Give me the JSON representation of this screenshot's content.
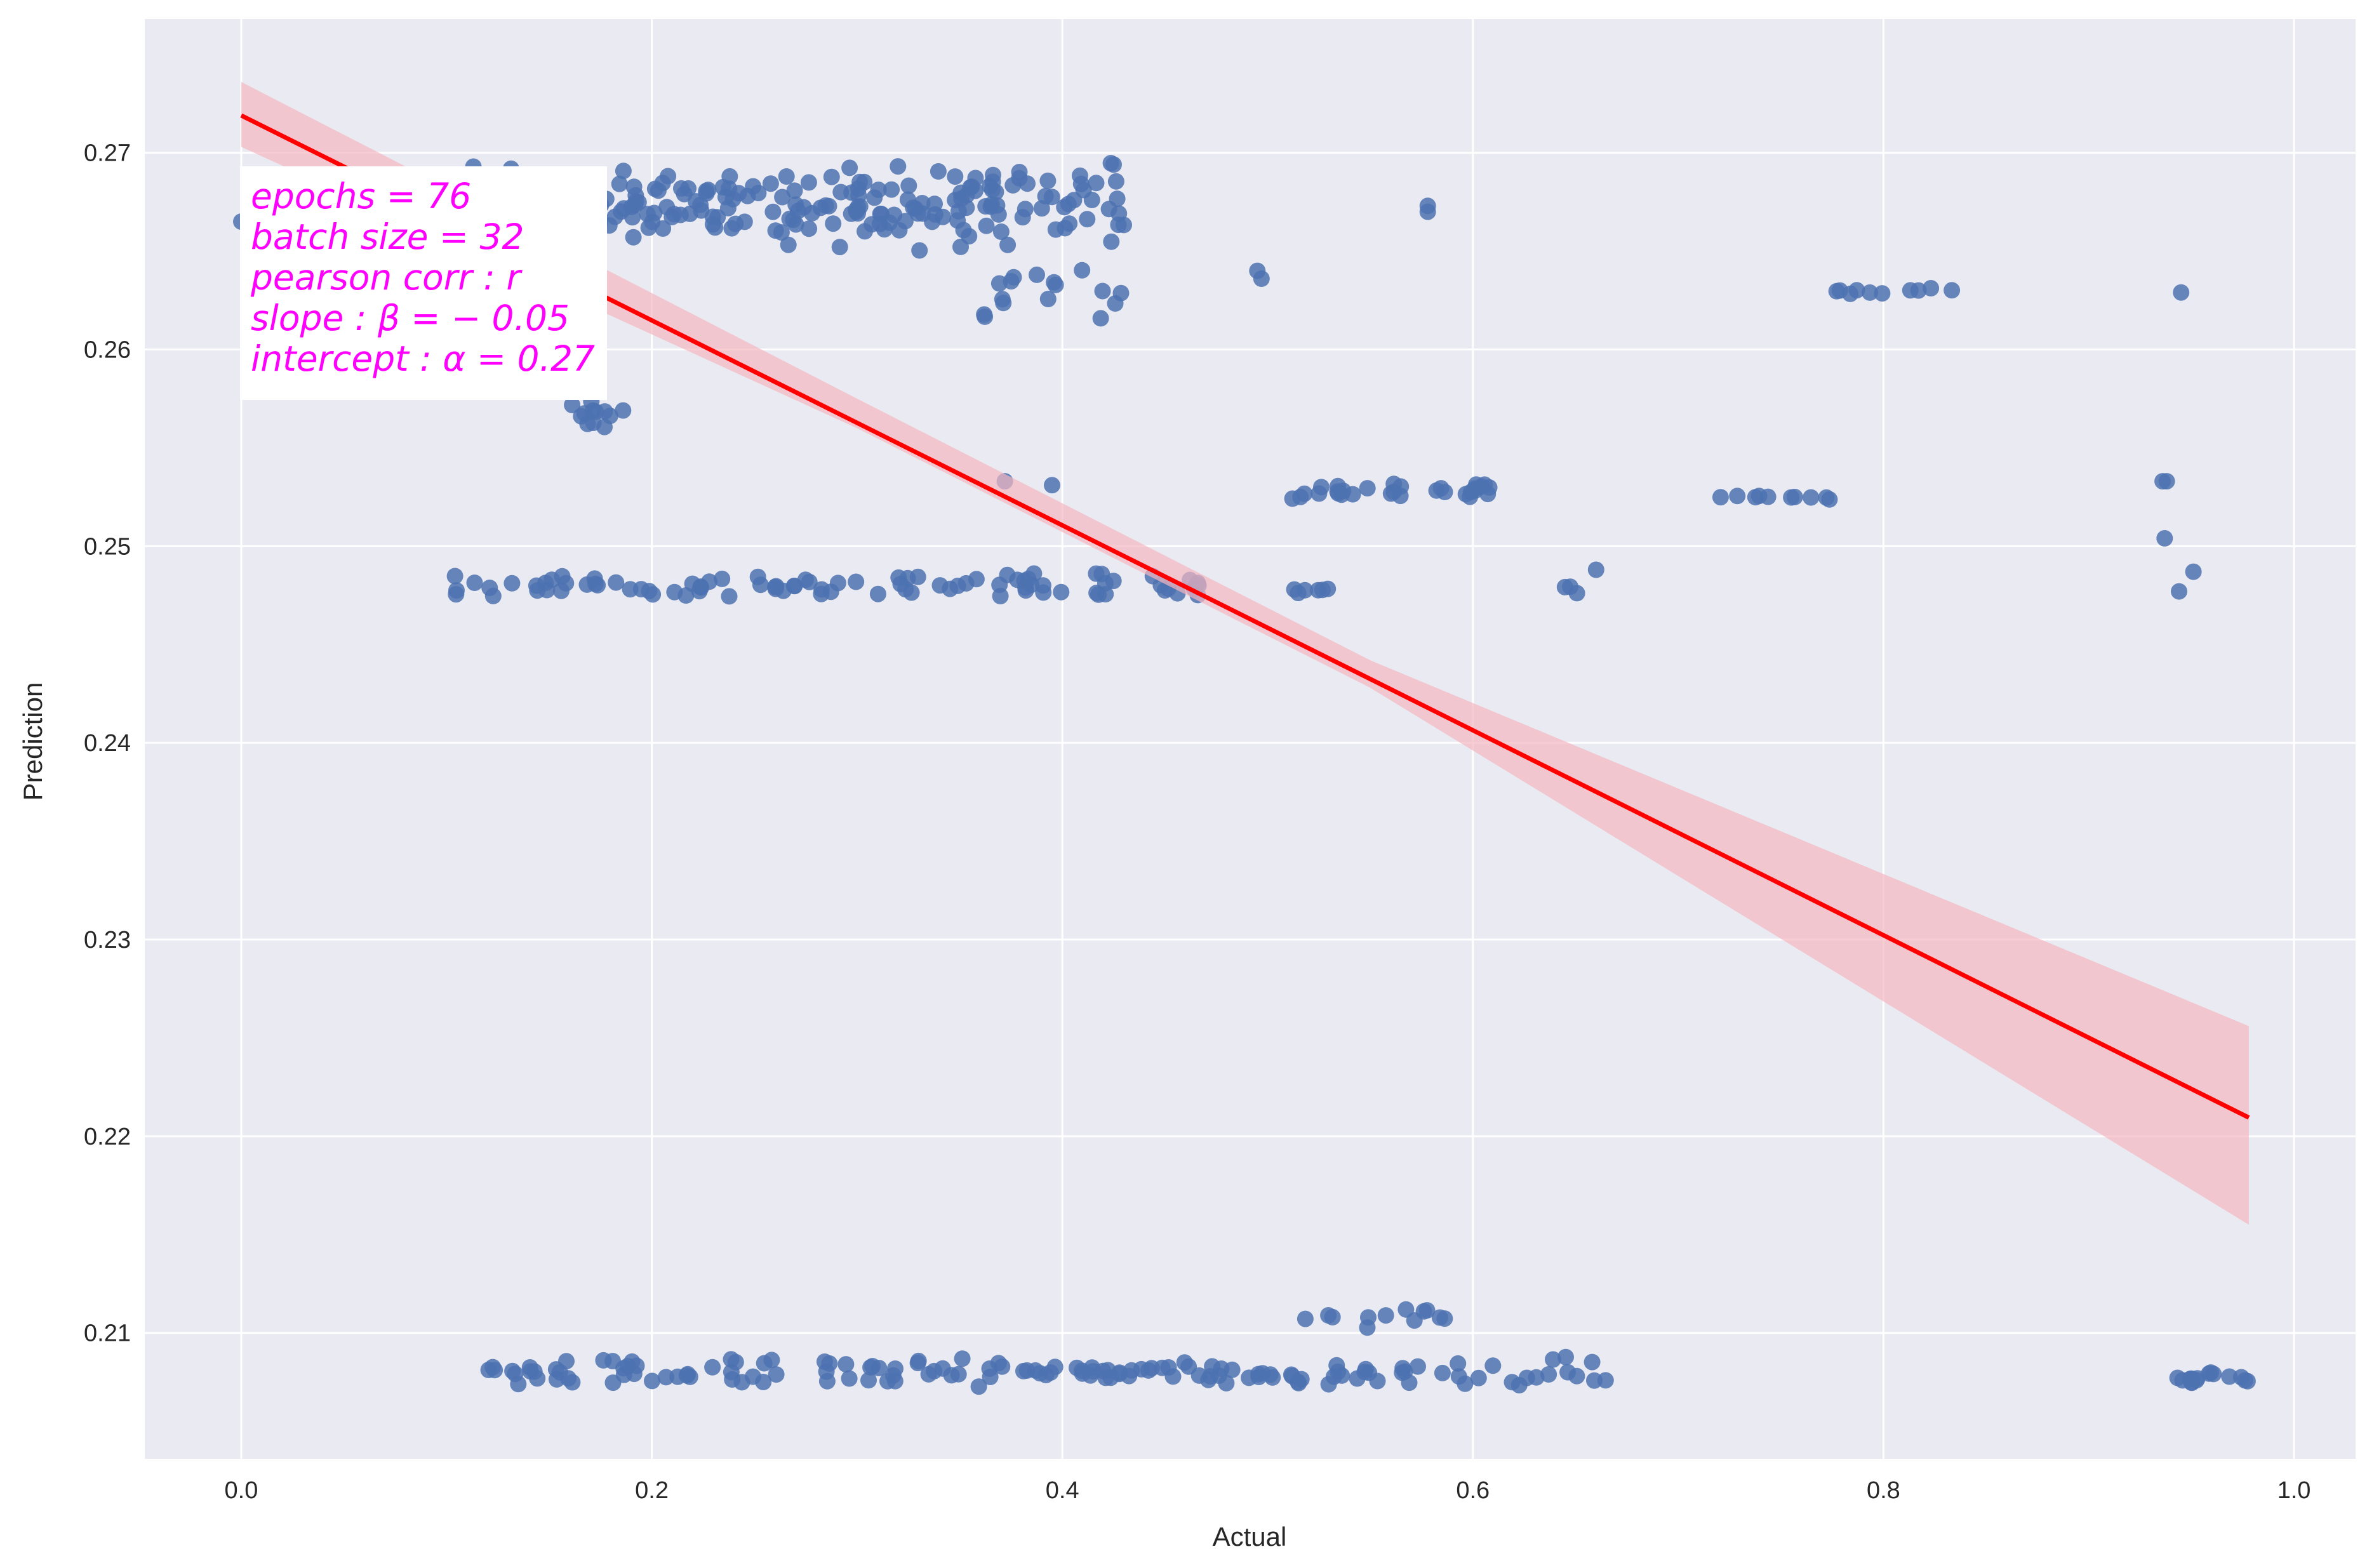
{
  "chart_data": {
    "type": "scatter",
    "title": "",
    "xlabel": "Actual",
    "ylabel": "Prediction",
    "xlim": [
      -0.047,
      1.03
    ],
    "ylim": [
      0.2036,
      0.2768
    ],
    "xticks": [
      0.0,
      0.2,
      0.4,
      0.6,
      0.8,
      1.0
    ],
    "xtick_labels": [
      "0.0",
      "0.2",
      "0.4",
      "0.6",
      "0.8",
      "1.0"
    ],
    "yticks": [
      0.21,
      0.22,
      0.23,
      0.24,
      0.25,
      0.26,
      0.27
    ],
    "ytick_labels": [
      "0.21",
      "0.22",
      "0.23",
      "0.24",
      "0.25",
      "0.26",
      "0.27"
    ],
    "grid": true,
    "background": "#eaeaf2",
    "point_color": "#4c72b0",
    "line_color": "#ff0000",
    "band_color": "#f4b6c0",
    "clusters": [
      {
        "x_from": 0.1,
        "x_to": 0.43,
        "y_center": 0.2672,
        "y_spread": 0.0024,
        "n": 240,
        "seed": 11
      },
      {
        "x_from": 0.04,
        "x_to": 0.09,
        "y_center": 0.2685,
        "y_spread": 0.0012,
        "n": 10,
        "seed": 12
      },
      {
        "x_from": 0.35,
        "x_to": 0.43,
        "y_center": 0.263,
        "y_spread": 0.002,
        "n": 16,
        "seed": 13
      },
      {
        "x_from": 0.16,
        "x_to": 0.19,
        "y_center": 0.2568,
        "y_spread": 0.001,
        "n": 12,
        "seed": 14
      },
      {
        "x_from": 0.1,
        "x_to": 0.47,
        "y_center": 0.248,
        "y_spread": 0.0007,
        "n": 90,
        "seed": 15
      },
      {
        "x_from": 0.51,
        "x_to": 0.61,
        "y_center": 0.2528,
        "y_spread": 0.0005,
        "n": 30,
        "seed": 16
      },
      {
        "x_from": 0.72,
        "x_to": 0.8,
        "y_center": 0.2525,
        "y_spread": 0.0002,
        "n": 10,
        "seed": 17
      },
      {
        "x_from": 0.77,
        "x_to": 0.84,
        "y_center": 0.263,
        "y_spread": 0.0002,
        "n": 10,
        "seed": 18
      },
      {
        "x_from": 0.64,
        "x_to": 0.66,
        "y_center": 0.248,
        "y_spread": 0.0005,
        "n": 3,
        "seed": 19
      },
      {
        "x_from": 0.51,
        "x_to": 0.53,
        "y_center": 0.2477,
        "y_spread": 0.0002,
        "n": 6,
        "seed": 20
      },
      {
        "x_from": 0.12,
        "x_to": 0.67,
        "y_center": 0.208,
        "y_spread": 0.0008,
        "n": 150,
        "seed": 21
      },
      {
        "x_from": 0.51,
        "x_to": 0.59,
        "y_center": 0.2108,
        "y_spread": 0.0006,
        "n": 12,
        "seed": 22
      },
      {
        "x_from": 0.94,
        "x_to": 0.98,
        "y_center": 0.2077,
        "y_spread": 0.0004,
        "n": 16,
        "seed": 23
      }
    ],
    "extra_points": [
      {
        "x": 0.0,
        "y": 0.2665
      },
      {
        "x": 0.578,
        "y": 0.2673
      },
      {
        "x": 0.578,
        "y": 0.267
      },
      {
        "x": 0.495,
        "y": 0.264
      },
      {
        "x": 0.497,
        "y": 0.2636
      },
      {
        "x": 0.945,
        "y": 0.2629
      },
      {
        "x": 0.938,
        "y": 0.2533
      },
      {
        "x": 0.936,
        "y": 0.2533
      },
      {
        "x": 0.937,
        "y": 0.2504
      },
      {
        "x": 0.951,
        "y": 0.2487
      },
      {
        "x": 0.944,
        "y": 0.2477
      },
      {
        "x": 0.66,
        "y": 0.2488
      },
      {
        "x": 0.372,
        "y": 0.2533
      },
      {
        "x": 0.395,
        "y": 0.2531
      },
      {
        "x": 0.425,
        "y": 0.2694
      }
    ],
    "regression": {
      "x_range": [
        0.0,
        0.978
      ],
      "intercept": 0.2719,
      "slope": -0.0521,
      "band": [
        {
          "x": 0.0,
          "lower": 0.2703,
          "upper": 0.2736
        },
        {
          "x": 0.3,
          "lower": 0.256,
          "upper": 0.2575
        },
        {
          "x": 0.55,
          "lower": 0.2428,
          "upper": 0.2442
        },
        {
          "x": 0.978,
          "lower": 0.2155,
          "upper": 0.2256
        }
      ]
    },
    "annotation": {
      "lines": [
        "epochs = 76",
        "batch size = 32",
        "pearson corr : r",
        "slope : β = − 0.05",
        "intercept : α = 0.27"
      ],
      "color": "#ff00ff"
    }
  }
}
